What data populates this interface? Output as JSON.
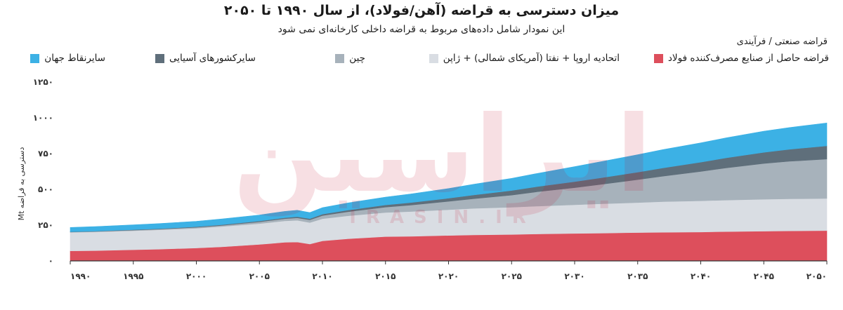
{
  "title": "میزان دسترسی به قراضه (آهن/فولاد)، از سال ۱۹۹۰ تا ۲۰۵۰",
  "subtitle": "این نمودار شامل داده‌های مربوط به قراضه داخلی کارخانه‌ای نمی شود",
  "legend_title": "قراضه صنعتی / فرآیندی",
  "watermark": {
    "logo": "ایراسین",
    "text": "IRASIN.IR"
  },
  "colors": {
    "steel": "#dd4f5c",
    "eu_na_jp": "#d9dde3",
    "china": "#a7b2bb",
    "other_asia": "#5f6f7b",
    "rest_world": "#3cb1e5",
    "axis": "#333333"
  },
  "chart_data": {
    "type": "area",
    "stacked": true,
    "ylabel": "Mt دسترسی به قراضه",
    "ylim": [
      0,
      1250
    ],
    "yticks": [
      0,
      250,
      500,
      750,
      1000,
      1250
    ],
    "ytick_labels": [
      "۰",
      "۲۵۰",
      "۵۰۰",
      "۷۵۰",
      "۱۰۰۰",
      "۱۲۵۰"
    ],
    "xlim": [
      1990,
      2050
    ],
    "xticks": [
      1990,
      1995,
      2000,
      2005,
      2010,
      2015,
      2020,
      2025,
      2030,
      2035,
      2040,
      2045,
      2050
    ],
    "xtick_labels": [
      "۱۹۹۰",
      "۱۹۹۵",
      "۲۰۰۰",
      "۲۰۰۵",
      "۲۰۱۰",
      "۲۰۱۵",
      "۲۰۲۰",
      "۲۰۲۵",
      "۲۰۳۰",
      "۲۰۳۵",
      "۲۰۴۰",
      "۲۰۴۵",
      "۲۰۵۰"
    ],
    "legend_position": "top",
    "x": [
      1990,
      1992,
      1995,
      1997,
      2000,
      2002,
      2005,
      2007,
      2008,
      2009,
      2010,
      2012,
      2015,
      2017,
      2020,
      2022,
      2025,
      2027,
      2030,
      2032,
      2035,
      2037,
      2040,
      2042,
      2045,
      2047,
      2050
    ],
    "series": [
      {
        "name": "قراضه حاصل از صنایع مصرف‌کننده فولاد",
        "color_key": "steel",
        "values": [
          70,
          72,
          78,
          82,
          90,
          98,
          115,
          130,
          132,
          118,
          140,
          155,
          170,
          172,
          178,
          182,
          185,
          188,
          192,
          194,
          198,
          200,
          202,
          205,
          208,
          210,
          212
        ]
      },
      {
        "name": "اتحادیه اروپا + نفتا (آمریکای شمالی) + ژاپن",
        "color_key": "eu_na_jp",
        "values": [
          130,
          131,
          133,
          135,
          138,
          142,
          146,
          150,
          152,
          150,
          155,
          160,
          168,
          173,
          180,
          185,
          190,
          195,
          200,
          205,
          210,
          214,
          218,
          220,
          223,
          224,
          225
        ]
      },
      {
        "name": "چین",
        "color_key": "china",
        "values": [
          2,
          3,
          4,
          5,
          7,
          8,
          12,
          15,
          17,
          19,
          22,
          28,
          38,
          45,
          58,
          68,
          85,
          100,
          120,
          135,
          160,
          178,
          205,
          225,
          250,
          262,
          275
        ]
      },
      {
        "name": "سایرکشورهای آسیایی",
        "color_key": "other_asia",
        "values": [
          2,
          2,
          3,
          3,
          4,
          5,
          6,
          7,
          8,
          8,
          10,
          12,
          15,
          18,
          22,
          26,
          32,
          36,
          42,
          46,
          52,
          58,
          65,
          70,
          78,
          84,
          92
        ]
      },
      {
        "name": "سایرنقاط جهان",
        "color_key": "rest_world",
        "values": [
          30,
          32,
          34,
          36,
          38,
          40,
          42,
          44,
          45,
          43,
          45,
          50,
          55,
          60,
          68,
          75,
          85,
          92,
          105,
          112,
          122,
          128,
          135,
          140,
          148,
          152,
          160
        ]
      }
    ]
  }
}
